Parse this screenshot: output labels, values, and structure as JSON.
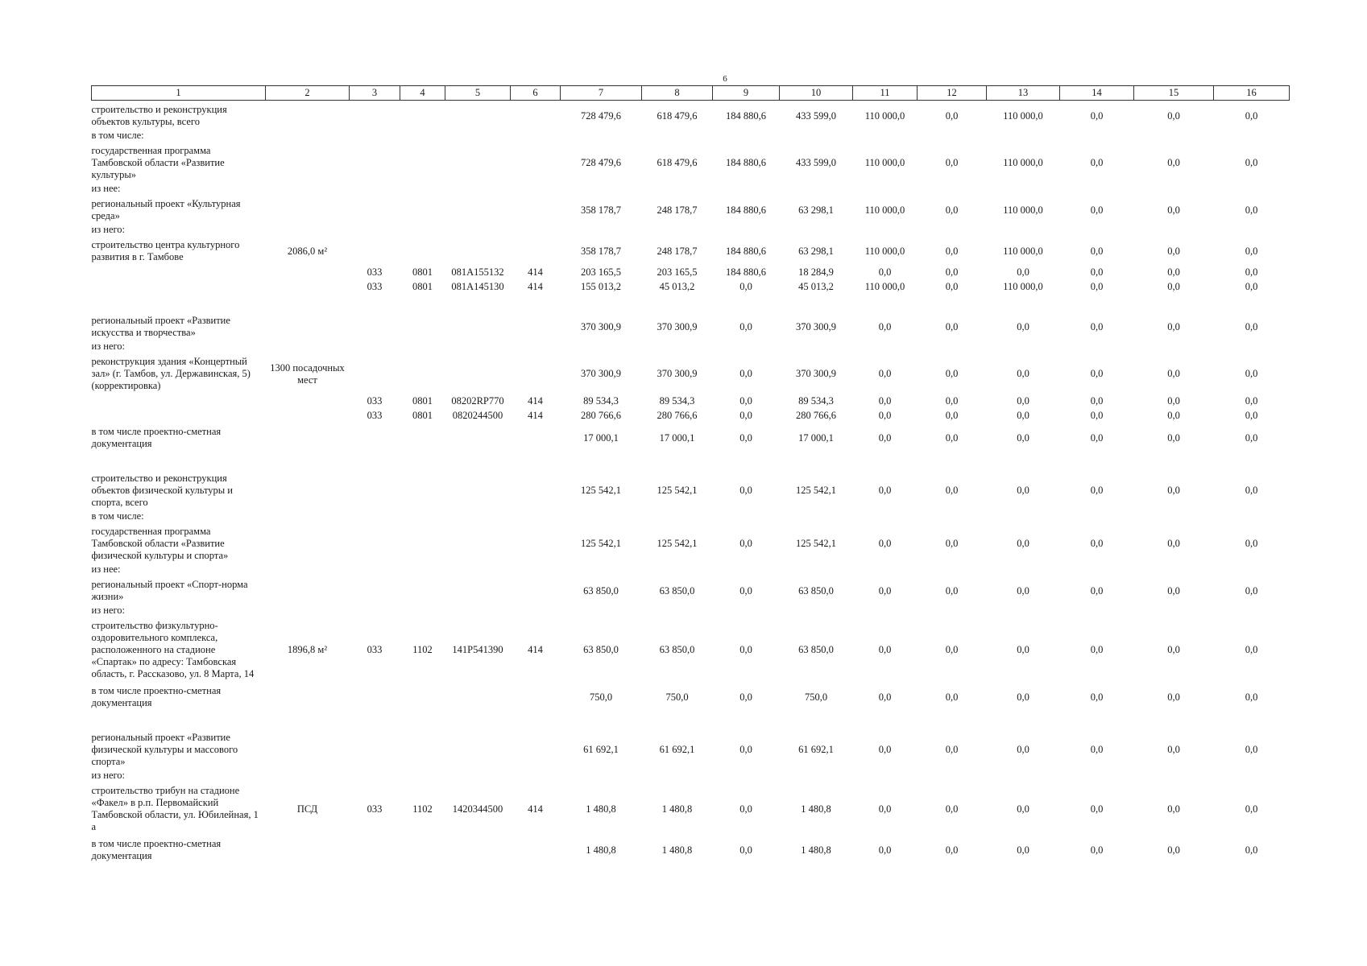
{
  "page_number": "6",
  "table": {
    "headers": [
      "1",
      "2",
      "3",
      "4",
      "5",
      "6",
      "7",
      "8",
      "9",
      "10",
      "11",
      "12",
      "13",
      "14",
      "15",
      "16"
    ],
    "rows": [
      {
        "type": "lead",
        "cells": [
          "строительство и реконструкция объектов культуры, всего",
          "",
          "",
          "",
          "",
          "",
          "728 479,6",
          "618 479,6",
          "184 880,6",
          "433 599,0",
          "110 000,0",
          "0,0",
          "110 000,0",
          "0,0",
          "0,0",
          "0,0"
        ]
      },
      {
        "type": "label",
        "cells": [
          "в том числе:"
        ]
      },
      {
        "type": "lead",
        "cells": [
          "государственная программа Тамбовской области «Развитие культуры»",
          "",
          "",
          "",
          "",
          "",
          "728 479,6",
          "618 479,6",
          "184 880,6",
          "433 599,0",
          "110 000,0",
          "0,0",
          "110 000,0",
          "0,0",
          "0,0",
          "0,0"
        ]
      },
      {
        "type": "label",
        "cells": [
          "из нее:"
        ]
      },
      {
        "type": "lead",
        "cells": [
          "региональный проект «Культурная среда»",
          "",
          "",
          "",
          "",
          "",
          "358 178,7",
          "248 178,7",
          "184 880,6",
          "63 298,1",
          "110 000,0",
          "0,0",
          "110 000,0",
          "0,0",
          "0,0",
          "0,0"
        ]
      },
      {
        "type": "label",
        "cells": [
          "из него:"
        ]
      },
      {
        "type": "lead",
        "cells": [
          "строительство центра культурного развития в г. Тамбове",
          "2086,0 м²",
          "",
          "",
          "",
          "",
          "358 178,7",
          "248 178,7",
          "184 880,6",
          "63 298,1",
          "110 000,0",
          "0,0",
          "110 000,0",
          "0,0",
          "0,0",
          "0,0"
        ]
      },
      {
        "type": "code",
        "cells": [
          "",
          "",
          "033",
          "0801",
          "081A155132",
          "414",
          "203 165,5",
          "203 165,5",
          "184 880,6",
          "18 284,9",
          "0,0",
          "0,0",
          "0,0",
          "0,0",
          "0,0",
          "0,0"
        ]
      },
      {
        "type": "code",
        "cells": [
          "",
          "",
          "033",
          "0801",
          "081A145130",
          "414",
          "155 013,2",
          "45 013,2",
          "0,0",
          "45 013,2",
          "110 000,0",
          "0,0",
          "110 000,0",
          "0,0",
          "0,0",
          "0,0"
        ]
      },
      {
        "type": "sep",
        "cells": []
      },
      {
        "type": "lead",
        "cells": [
          "региональный проект «Развитие искусства и творчества»",
          "",
          "",
          "",
          "",
          "",
          "370 300,9",
          "370 300,9",
          "0,0",
          "370 300,9",
          "0,0",
          "0,0",
          "0,0",
          "0,0",
          "0,0",
          "0,0"
        ]
      },
      {
        "type": "label",
        "cells": [
          "из него:"
        ]
      },
      {
        "type": "lead",
        "cells": [
          "реконструкция здания «Концертный зал» (г. Тамбов, ул. Державинская, 5) (корректировка)",
          "1300 посадочных мест",
          "",
          "",
          "",
          "",
          "370 300,9",
          "370 300,9",
          "0,0",
          "370 300,9",
          "0,0",
          "0,0",
          "0,0",
          "0,0",
          "0,0",
          "0,0"
        ]
      },
      {
        "type": "code",
        "cells": [
          "",
          "",
          "033",
          "0801",
          "08202RP770",
          "414",
          "89 534,3",
          "89 534,3",
          "0,0",
          "89 534,3",
          "0,0",
          "0,0",
          "0,0",
          "0,0",
          "0,0",
          "0,0"
        ]
      },
      {
        "type": "code",
        "cells": [
          "",
          "",
          "033",
          "0801",
          "0820244500",
          "414",
          "280 766,6",
          "280 766,6",
          "0,0",
          "280 766,6",
          "0,0",
          "0,0",
          "0,0",
          "0,0",
          "0,0",
          "0,0"
        ]
      },
      {
        "type": "lead",
        "cells": [
          "в том числе проектно-сметная документация",
          "",
          "",
          "",
          "",
          "",
          "17 000,1",
          "17 000,1",
          "0,0",
          "17 000,1",
          "0,0",
          "0,0",
          "0,0",
          "0,0",
          "0,0",
          "0,0"
        ]
      },
      {
        "type": "sep",
        "cells": []
      },
      {
        "type": "lead",
        "cells": [
          "строительство и реконструкция объектов физической культуры и спорта, всего",
          "",
          "",
          "",
          "",
          "",
          "125 542,1",
          "125 542,1",
          "0,0",
          "125 542,1",
          "0,0",
          "0,0",
          "0,0",
          "0,0",
          "0,0",
          "0,0"
        ]
      },
      {
        "type": "label",
        "cells": [
          "в том числе:"
        ]
      },
      {
        "type": "lead",
        "cells": [
          "государственная программа Тамбовской области «Развитие физической культуры и спорта»",
          "",
          "",
          "",
          "",
          "",
          "125 542,1",
          "125 542,1",
          "0,0",
          "125 542,1",
          "0,0",
          "0,0",
          "0,0",
          "0,0",
          "0,0",
          "0,0"
        ]
      },
      {
        "type": "label",
        "cells": [
          "из нее:"
        ]
      },
      {
        "type": "lead",
        "cells": [
          "региональный проект «Спорт-норма жизни»",
          "",
          "",
          "",
          "",
          "",
          "63 850,0",
          "63 850,0",
          "0,0",
          "63 850,0",
          "0,0",
          "0,0",
          "0,0",
          "0,0",
          "0,0",
          "0,0"
        ]
      },
      {
        "type": "label",
        "cells": [
          "из него:"
        ]
      },
      {
        "type": "lead",
        "cells": [
          "строительство физкультурно-оздоровительного комплекса, расположенного на стадионе «Спартак» по адресу: Тамбовская область, г. Рассказово, ул. 8 Марта, 14",
          "1896,8 м²",
          "033",
          "1102",
          "141P541390",
          "414",
          "63 850,0",
          "63 850,0",
          "0,0",
          "63 850,0",
          "0,0",
          "0,0",
          "0,0",
          "0,0",
          "0,0",
          "0,0"
        ]
      },
      {
        "type": "lead",
        "cells": [
          "в том числе проектно-сметная документация",
          "",
          "",
          "",
          "",
          "",
          "750,0",
          "750,0",
          "0,0",
          "750,0",
          "0,0",
          "0,0",
          "0,0",
          "0,0",
          "0,0",
          "0,0"
        ]
      },
      {
        "type": "sep",
        "cells": []
      },
      {
        "type": "lead",
        "cells": [
          "региональный проект «Развитие физической культуры и массового спорта»",
          "",
          "",
          "",
          "",
          "",
          "61 692,1",
          "61 692,1",
          "0,0",
          "61 692,1",
          "0,0",
          "0,0",
          "0,0",
          "0,0",
          "0,0",
          "0,0"
        ]
      },
      {
        "type": "label",
        "cells": [
          "из него:"
        ]
      },
      {
        "type": "lead",
        "cells": [
          "строительство трибун на стадионе «Факел» в р.п. Первомайский Тамбовской области, ул. Юбилейная, 1 а",
          "ПСД",
          "033",
          "1102",
          "1420344500",
          "414",
          "1 480,8",
          "1 480,8",
          "0,0",
          "1 480,8",
          "0,0",
          "0,0",
          "0,0",
          "0,0",
          "0,0",
          "0,0"
        ]
      },
      {
        "type": "lead",
        "cells": [
          "в том числе проектно-сметная документация",
          "",
          "",
          "",
          "",
          "",
          "1 480,8",
          "1 480,8",
          "0,0",
          "1 480,8",
          "0,0",
          "0,0",
          "0,0",
          "0,0",
          "0,0",
          "0,0"
        ]
      }
    ]
  }
}
